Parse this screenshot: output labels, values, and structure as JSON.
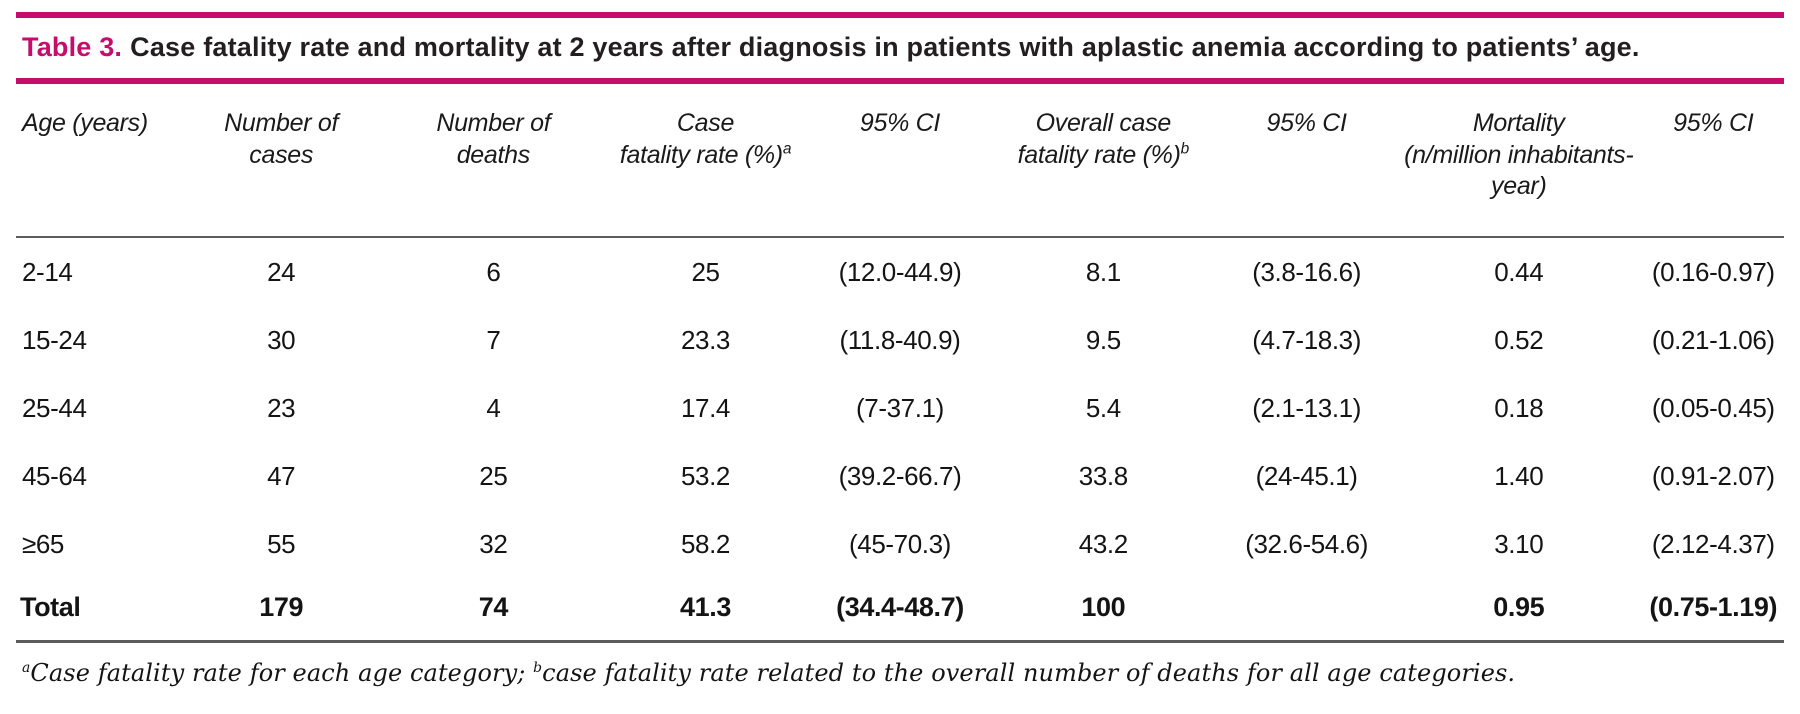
{
  "accent_color": "#c60d6e",
  "title": {
    "label": "Table 3.",
    "text": "Case fatality rate and mortality at 2 years after diagnosis in patients with aplastic anemia according to patients’ age."
  },
  "table": {
    "columns": [
      {
        "lines": [
          "Age (years)"
        ],
        "sup": "",
        "align": "left",
        "width": "9%"
      },
      {
        "lines": [
          "Number of",
          "cases"
        ],
        "sup": "",
        "align": "center",
        "width": "12%"
      },
      {
        "lines": [
          "Number of",
          "deaths"
        ],
        "sup": "",
        "align": "center",
        "width": "12%"
      },
      {
        "lines": [
          "Case",
          "fatality rate (%)"
        ],
        "sup": "a",
        "align": "center",
        "width": "12%"
      },
      {
        "lines": [
          "95% CI"
        ],
        "sup": "",
        "align": "center",
        "width": "10%"
      },
      {
        "lines": [
          "Overall case",
          "fatality rate (%)"
        ],
        "sup": "b",
        "align": "center",
        "width": "13%"
      },
      {
        "lines": [
          "95% CI"
        ],
        "sup": "",
        "align": "center",
        "width": "10%"
      },
      {
        "lines": [
          "Mortality",
          "(n/million inhabitants-year)"
        ],
        "sup": "",
        "align": "center",
        "width": "14%"
      },
      {
        "lines": [
          "95% CI"
        ],
        "sup": "",
        "align": "center",
        "width": "8%"
      }
    ],
    "rows": [
      {
        "bold": false,
        "cells": [
          "2-14",
          "24",
          "6",
          "25",
          "(12.0-44.9)",
          "8.1",
          "(3.8-16.6)",
          "0.44",
          "(0.16-0.97)"
        ]
      },
      {
        "bold": false,
        "cells": [
          "15-24",
          "30",
          "7",
          "23.3",
          "(11.8-40.9)",
          "9.5",
          "(4.7-18.3)",
          "0.52",
          "(0.21-1.06)"
        ]
      },
      {
        "bold": false,
        "cells": [
          "25-44",
          "23",
          "4",
          "17.4",
          "(7-37.1)",
          "5.4",
          "(2.1-13.1)",
          "0.18",
          "(0.05-0.45)"
        ]
      },
      {
        "bold": false,
        "cells": [
          "45-64",
          "47",
          "25",
          "53.2",
          "(39.2-66.7)",
          "33.8",
          "(24-45.1)",
          "1.40",
          "(0.91-2.07)"
        ]
      },
      {
        "bold": false,
        "cells": [
          "≥65",
          "55",
          "32",
          "58.2",
          "(45-70.3)",
          "43.2",
          "(32.6-54.6)",
          "3.10",
          "(2.12-4.37)"
        ]
      },
      {
        "bold": true,
        "cells": [
          "Total",
          "179",
          "74",
          "41.3",
          "(34.4-48.7)",
          "100",
          "",
          "0.95",
          "(0.75-1.19)"
        ]
      }
    ]
  },
  "footnote": {
    "parts": [
      {
        "sup": "a",
        "text": "Case fatality rate for each age category; "
      },
      {
        "sup": "b",
        "text": "case fatality rate related to the overall number of deaths for all age categories."
      }
    ]
  }
}
